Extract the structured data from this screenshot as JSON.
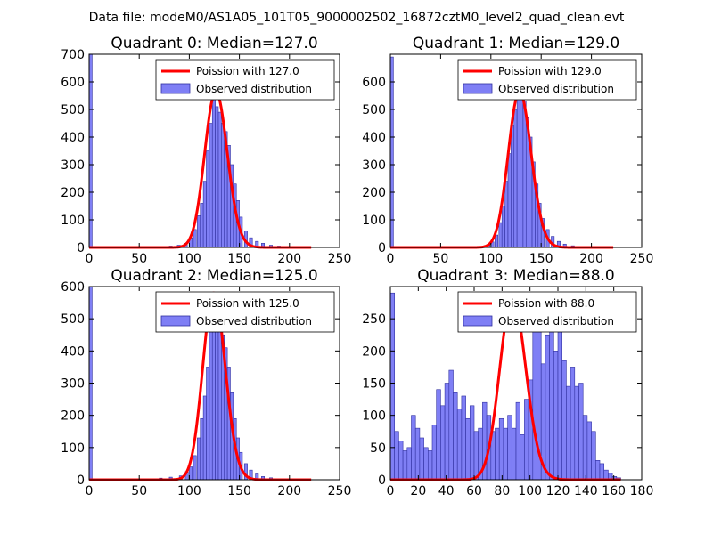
{
  "suptitle": "Data file: modeM0/AS1A05_101T05_9000002502_16872cztM0_level2_quad_clean.evt",
  "colors": {
    "bar_fill": "#7f7ff5",
    "bar_edge": "#3030a0",
    "poisson_line": "#ff0000",
    "axes": "#000000"
  },
  "chart_data": [
    {
      "type": "bar",
      "title": "Quadrant 0: Median=127.0",
      "xlim": [
        0,
        250
      ],
      "ylim": [
        0,
        700
      ],
      "xticks": [
        "0",
        "50",
        "100",
        "150",
        "200",
        "250"
      ],
      "yticks": [
        "0",
        "100",
        "200",
        "300",
        "400",
        "500",
        "600",
        "700"
      ],
      "legend": [
        "Poission with 127.0",
        "Observed distribution"
      ],
      "legend_position": "top-right",
      "poisson_mean": 127.0,
      "poisson_peak": 565,
      "bins": [
        {
          "x": 0,
          "h": 700
        },
        {
          "x": 68,
          "h": 3
        },
        {
          "x": 80,
          "h": 5
        },
        {
          "x": 88,
          "h": 8
        },
        {
          "x": 95,
          "h": 15
        },
        {
          "x": 100,
          "h": 35
        },
        {
          "x": 104,
          "h": 65
        },
        {
          "x": 108,
          "h": 115
        },
        {
          "x": 111,
          "h": 160
        },
        {
          "x": 114,
          "h": 240
        },
        {
          "x": 117,
          "h": 350
        },
        {
          "x": 120,
          "h": 450
        },
        {
          "x": 123,
          "h": 540
        },
        {
          "x": 126,
          "h": 510
        },
        {
          "x": 129,
          "h": 490
        },
        {
          "x": 132,
          "h": 450
        },
        {
          "x": 135,
          "h": 420
        },
        {
          "x": 138,
          "h": 370
        },
        {
          "x": 141,
          "h": 300
        },
        {
          "x": 144,
          "h": 230
        },
        {
          "x": 147,
          "h": 170
        },
        {
          "x": 150,
          "h": 110
        },
        {
          "x": 155,
          "h": 60
        },
        {
          "x": 160,
          "h": 35
        },
        {
          "x": 166,
          "h": 22
        },
        {
          "x": 172,
          "h": 15
        },
        {
          "x": 180,
          "h": 8
        },
        {
          "x": 188,
          "h": 5
        },
        {
          "x": 196,
          "h": 3
        }
      ]
    },
    {
      "type": "bar",
      "title": "Quadrant 1: Median=129.0",
      "xlim": [
        0,
        250
      ],
      "ylim": [
        0,
        700
      ],
      "xticks": [
        "0",
        "50",
        "100",
        "150",
        "200",
        "250"
      ],
      "yticks": [
        "0",
        "100",
        "200",
        "300",
        "400",
        "500",
        "600"
      ],
      "legend": [
        "Poission with 129.0",
        "Observed distribution"
      ],
      "legend_position": "top-right",
      "poisson_mean": 129.0,
      "poisson_peak": 565,
      "bins": [
        {
          "x": 0,
          "h": 690
        },
        {
          "x": 90,
          "h": 3
        },
        {
          "x": 96,
          "h": 10
        },
        {
          "x": 100,
          "h": 20
        },
        {
          "x": 104,
          "h": 45
        },
        {
          "x": 108,
          "h": 90
        },
        {
          "x": 111,
          "h": 150
        },
        {
          "x": 114,
          "h": 240
        },
        {
          "x": 117,
          "h": 340
        },
        {
          "x": 120,
          "h": 440
        },
        {
          "x": 123,
          "h": 500
        },
        {
          "x": 126,
          "h": 540
        },
        {
          "x": 129,
          "h": 565
        },
        {
          "x": 132,
          "h": 530
        },
        {
          "x": 135,
          "h": 470
        },
        {
          "x": 138,
          "h": 400
        },
        {
          "x": 141,
          "h": 310
        },
        {
          "x": 144,
          "h": 230
        },
        {
          "x": 147,
          "h": 160
        },
        {
          "x": 150,
          "h": 105
        },
        {
          "x": 155,
          "h": 65
        },
        {
          "x": 160,
          "h": 40
        },
        {
          "x": 166,
          "h": 22
        },
        {
          "x": 172,
          "h": 12
        },
        {
          "x": 180,
          "h": 6
        },
        {
          "x": 190,
          "h": 3
        }
      ]
    },
    {
      "type": "bar",
      "title": "Quadrant 2: Median=125.0",
      "xlim": [
        0,
        250
      ],
      "ylim": [
        0,
        600
      ],
      "xticks": [
        "0",
        "50",
        "100",
        "150",
        "200",
        "250"
      ],
      "yticks": [
        "0",
        "100",
        "200",
        "300",
        "400",
        "500",
        "600"
      ],
      "legend": [
        "Poission with 125.0",
        "Observed distribution"
      ],
      "legend_position": "top-right",
      "poisson_mean": 125.0,
      "poisson_peak": 580,
      "bins": [
        {
          "x": 0,
          "h": 600
        },
        {
          "x": 70,
          "h": 5
        },
        {
          "x": 80,
          "h": 8
        },
        {
          "x": 90,
          "h": 12
        },
        {
          "x": 96,
          "h": 25
        },
        {
          "x": 100,
          "h": 40
        },
        {
          "x": 104,
          "h": 75
        },
        {
          "x": 108,
          "h": 130
        },
        {
          "x": 111,
          "h": 190
        },
        {
          "x": 114,
          "h": 260
        },
        {
          "x": 117,
          "h": 350
        },
        {
          "x": 120,
          "h": 460
        },
        {
          "x": 123,
          "h": 540
        },
        {
          "x": 126,
          "h": 500
        },
        {
          "x": 129,
          "h": 480
        },
        {
          "x": 132,
          "h": 450
        },
        {
          "x": 135,
          "h": 410
        },
        {
          "x": 138,
          "h": 350
        },
        {
          "x": 141,
          "h": 270
        },
        {
          "x": 144,
          "h": 190
        },
        {
          "x": 147,
          "h": 130
        },
        {
          "x": 150,
          "h": 85
        },
        {
          "x": 155,
          "h": 50
        },
        {
          "x": 160,
          "h": 30
        },
        {
          "x": 166,
          "h": 18
        },
        {
          "x": 172,
          "h": 10
        },
        {
          "x": 180,
          "h": 6
        },
        {
          "x": 190,
          "h": 3
        }
      ]
    },
    {
      "type": "bar",
      "title": "Quadrant 3: Median=88.0",
      "xlim": [
        0,
        180
      ],
      "ylim": [
        0,
        300
      ],
      "xticks": [
        "0",
        "20",
        "40",
        "60",
        "80",
        "100",
        "120",
        "140",
        "160",
        "180"
      ],
      "yticks": [
        "0",
        "50",
        "100",
        "150",
        "200",
        "250"
      ],
      "legend": [
        "Poission with 88.0",
        "Observed distribution"
      ],
      "legend_position": "top-right",
      "poisson_mean": 88.0,
      "poisson_peak": 283,
      "bins": [
        {
          "x": 0,
          "h": 290
        },
        {
          "x": 3,
          "h": 75
        },
        {
          "x": 6,
          "h": 60
        },
        {
          "x": 9,
          "h": 45
        },
        {
          "x": 12,
          "h": 50
        },
        {
          "x": 15,
          "h": 100
        },
        {
          "x": 18,
          "h": 80
        },
        {
          "x": 21,
          "h": 65
        },
        {
          "x": 24,
          "h": 50
        },
        {
          "x": 27,
          "h": 45
        },
        {
          "x": 30,
          "h": 85
        },
        {
          "x": 33,
          "h": 140
        },
        {
          "x": 36,
          "h": 115
        },
        {
          "x": 39,
          "h": 150
        },
        {
          "x": 42,
          "h": 170
        },
        {
          "x": 45,
          "h": 135
        },
        {
          "x": 48,
          "h": 110
        },
        {
          "x": 51,
          "h": 130
        },
        {
          "x": 54,
          "h": 95
        },
        {
          "x": 57,
          "h": 115
        },
        {
          "x": 60,
          "h": 75
        },
        {
          "x": 63,
          "h": 80
        },
        {
          "x": 66,
          "h": 120
        },
        {
          "x": 69,
          "h": 100
        },
        {
          "x": 72,
          "h": 75
        },
        {
          "x": 75,
          "h": 80
        },
        {
          "x": 78,
          "h": 95
        },
        {
          "x": 81,
          "h": 80
        },
        {
          "x": 84,
          "h": 100
        },
        {
          "x": 87,
          "h": 80
        },
        {
          "x": 90,
          "h": 120
        },
        {
          "x": 93,
          "h": 70
        },
        {
          "x": 96,
          "h": 125
        },
        {
          "x": 99,
          "h": 155
        },
        {
          "x": 102,
          "h": 280
        },
        {
          "x": 105,
          "h": 255
        },
        {
          "x": 108,
          "h": 180
        },
        {
          "x": 111,
          "h": 225
        },
        {
          "x": 114,
          "h": 275
        },
        {
          "x": 117,
          "h": 200
        },
        {
          "x": 120,
          "h": 240
        },
        {
          "x": 123,
          "h": 185
        },
        {
          "x": 126,
          "h": 145
        },
        {
          "x": 129,
          "h": 175
        },
        {
          "x": 132,
          "h": 145
        },
        {
          "x": 135,
          "h": 150
        },
        {
          "x": 138,
          "h": 100
        },
        {
          "x": 141,
          "h": 90
        },
        {
          "x": 144,
          "h": 75
        },
        {
          "x": 147,
          "h": 30
        },
        {
          "x": 150,
          "h": 25
        },
        {
          "x": 153,
          "h": 15
        },
        {
          "x": 156,
          "h": 10
        },
        {
          "x": 159,
          "h": 5
        },
        {
          "x": 162,
          "h": 3
        }
      ]
    }
  ]
}
